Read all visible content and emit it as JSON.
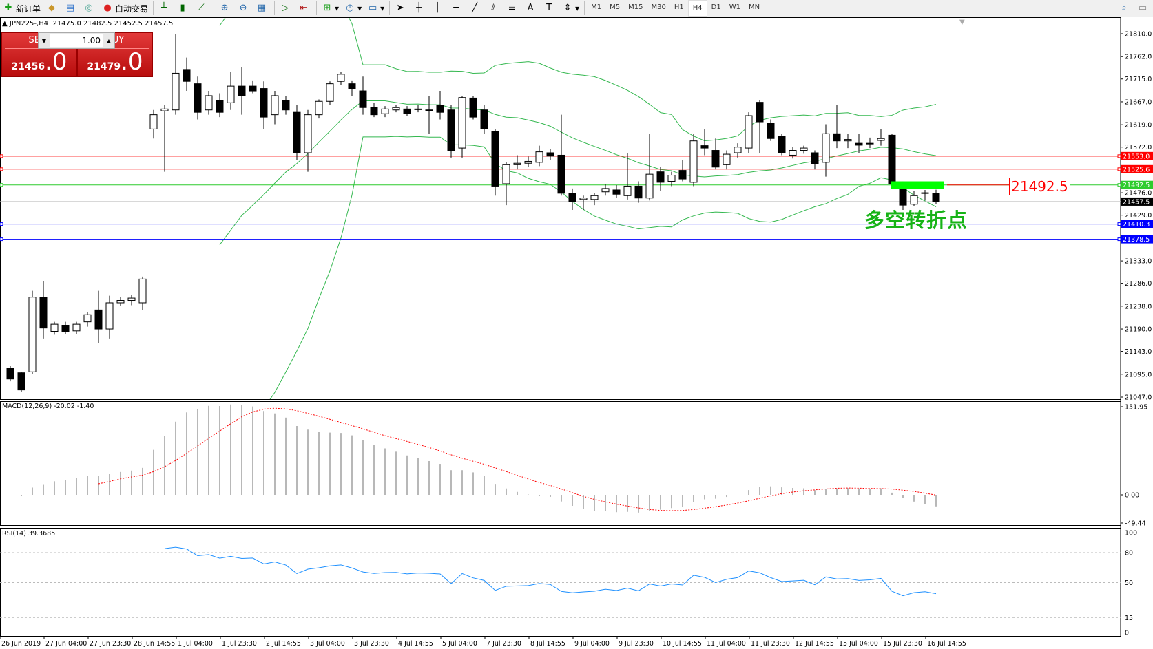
{
  "toolbar": {
    "new_order": "新订单",
    "auto_trading": "自动交易",
    "icons": [
      "new-order-icon",
      "market-watch-icon",
      "navigator-icon",
      "signals-icon",
      "autotrading-icon",
      "bar-chart-icon",
      "candlestick-icon",
      "line-chart-icon",
      "zoom-in-icon",
      "zoom-out-icon",
      "tile-windows-icon",
      "autoscroll-icon",
      "chart-shift-icon",
      "indicators-icon",
      "periods-icon",
      "templates-icon",
      "cursor-icon",
      "crosshair-icon",
      "vertical-line-icon",
      "horizontal-line-icon",
      "trendline-icon",
      "equidistant-channel-icon",
      "fibonacci-icon",
      "text-icon",
      "text-label-icon",
      "arrows-icon",
      "search-icon",
      "chat-icon"
    ],
    "timeframes": [
      "M1",
      "M5",
      "M15",
      "M30",
      "H1",
      "H4",
      "D1",
      "W1",
      "MN"
    ],
    "active_timeframe": "H4"
  },
  "header": {
    "symbol": "JPN225-,H4",
    "ohlc": "21475.0 21482.5 21452.5 21457.5"
  },
  "one_click": {
    "sell_label": "SELL",
    "buy_label": "BUY",
    "lot": "1.00",
    "sell_price": "21456",
    "sell_frac": ".0",
    "buy_price": "21479",
    "buy_frac": ".0"
  },
  "price_axis": [
    "21810.0",
    "21762.0",
    "21715.0",
    "21667.0",
    "21619.0",
    "21572.0",
    "21476.0",
    "21429.0",
    "21333.0",
    "21286.0",
    "21238.0",
    "21190.0",
    "21143.0",
    "21095.0",
    "21047.0"
  ],
  "levels": [
    {
      "price": 21553.0,
      "label": "21553.0",
      "color": "#ff0000"
    },
    {
      "price": 21525.6,
      "label": "21525.6",
      "color": "#ff0000"
    },
    {
      "price": 21492.5,
      "label": "21492.5",
      "color": "#2ecc2e"
    },
    {
      "price": 21457.5,
      "label": "21457.5",
      "color": "#000000",
      "line": "#c0c0c0"
    },
    {
      "price": 21410.3,
      "label": "21410.3",
      "color": "#0000ff"
    },
    {
      "price": 21378.5,
      "label": "21378.5",
      "color": "#0000ff"
    }
  ],
  "annotation": {
    "price_label": "21492.5",
    "text": "多空转折点",
    "marker_color": "#00ff00"
  },
  "macd": {
    "label": "MACD(12,26,9) -20.02 -1.40",
    "axis": [
      "151.95",
      "0.00",
      "-49.44"
    ],
    "max": 151.95,
    "min": -49.44
  },
  "rsi": {
    "label": "RSI(14) 39.3685",
    "axis": [
      "100",
      "80",
      "50",
      "15",
      "0"
    ],
    "levels": [
      80,
      50,
      15
    ]
  },
  "time_axis": [
    "26 Jun 2019",
    "27 Jun 04:00",
    "27 Jun 23:30",
    "28 Jun 14:55",
    "1 Jul 04:00",
    "1 Jul 23:30",
    "2 Jul 14:55",
    "3 Jul 04:00",
    "3 Jul 23:30",
    "4 Jul 14:55",
    "5 Jul 04:00",
    "7 Jul 23:30",
    "8 Jul 14:55",
    "9 Jul 04:00",
    "9 Jul 23:30",
    "10 Jul 14:55",
    "11 Jul 04:00",
    "11 Jul 23:30",
    "12 Jul 14:55",
    "15 Jul 04:00",
    "15 Jul 23:30",
    "16 Jul 14:55"
  ],
  "colors": {
    "bands": "#35b850",
    "macd_hist": "#b8b8b8",
    "macd_signal": "#ff0000",
    "rsi": "#1e90ff"
  },
  "chart_data": {
    "type": "candlestick",
    "price_range": [
      21047.0,
      21810.0
    ],
    "candles": [
      [
        21108,
        21112,
        21080,
        21085
      ],
      [
        21098,
        21100,
        21058,
        21062
      ],
      [
        21100,
        21270,
        21095,
        21257
      ],
      [
        21257,
        21290,
        21170,
        21192
      ],
      [
        21185,
        21205,
        21178,
        21200
      ],
      [
        21198,
        21205,
        21180,
        21185
      ],
      [
        21186,
        21205,
        21180,
        21200
      ],
      [
        21205,
        21225,
        21195,
        21220
      ],
      [
        21230,
        21270,
        21160,
        21190
      ],
      [
        21190,
        21260,
        21170,
        21245
      ],
      [
        21245,
        21258,
        21238,
        21250
      ],
      [
        21250,
        21262,
        21240,
        21255
      ],
      [
        21245,
        21300,
        21230,
        21295
      ],
      [
        21610,
        21650,
        21590,
        21640
      ],
      [
        21648,
        21660,
        21520,
        21652
      ],
      [
        21650,
        21810,
        21640,
        21727
      ],
      [
        21735,
        21760,
        21690,
        21710
      ],
      [
        21705,
        21720,
        21630,
        21645
      ],
      [
        21650,
        21690,
        21640,
        21680
      ],
      [
        21670,
        21685,
        21635,
        21645
      ],
      [
        21665,
        21730,
        21650,
        21700
      ],
      [
        21700,
        21740,
        21640,
        21680
      ],
      [
        21700,
        21712,
        21685,
        21690
      ],
      [
        21695,
        21710,
        21610,
        21635
      ],
      [
        21640,
        21690,
        21620,
        21680
      ],
      [
        21670,
        21680,
        21640,
        21650
      ],
      [
        21645,
        21660,
        21545,
        21560
      ],
      [
        21560,
        21650,
        21520,
        21640
      ],
      [
        21640,
        21672,
        21632,
        21668
      ],
      [
        21668,
        21710,
        21660,
        21705
      ],
      [
        21710,
        21730,
        21702,
        21725
      ],
      [
        21705,
        21712,
        21680,
        21695
      ],
      [
        21690,
        21720,
        21640,
        21655
      ],
      [
        21655,
        21665,
        21635,
        21640
      ],
      [
        21642,
        21658,
        21635,
        21652
      ],
      [
        21650,
        21660,
        21645,
        21655
      ],
      [
        21652,
        21658,
        21638,
        21642
      ],
      [
        21652,
        21660,
        21645,
        21652
      ],
      [
        21650,
        21680,
        21600,
        21650
      ],
      [
        21660,
        21690,
        21630,
        21645
      ],
      [
        21650,
        21660,
        21550,
        21565
      ],
      [
        21570,
        21680,
        21550,
        21676
      ],
      [
        21675,
        21680,
        21630,
        21635
      ],
      [
        21650,
        21660,
        21600,
        21610
      ],
      [
        21605,
        21610,
        21470,
        21490
      ],
      [
        21495,
        21540,
        21450,
        21535
      ],
      [
        21535,
        21555,
        21525,
        21538
      ],
      [
        21538,
        21552,
        21530,
        21542
      ],
      [
        21540,
        21575,
        21532,
        21562
      ],
      [
        21560,
        21568,
        21545,
        21553
      ],
      [
        21555,
        21640,
        21470,
        21475
      ],
      [
        21475,
        21485,
        21440,
        21458
      ],
      [
        21462,
        21470,
        21440,
        21465
      ],
      [
        21462,
        21475,
        21450,
        21470
      ],
      [
        21478,
        21495,
        21470,
        21485
      ],
      [
        21482,
        21492,
        21465,
        21473
      ],
      [
        21470,
        21560,
        21462,
        21490
      ],
      [
        21490,
        21500,
        21455,
        21465
      ],
      [
        21465,
        21600,
        21460,
        21515
      ],
      [
        21520,
        21530,
        21480,
        21498
      ],
      [
        21500,
        21520,
        21490,
        21513
      ],
      [
        21523,
        21545,
        21500,
        21505
      ],
      [
        21498,
        21600,
        21490,
        21585
      ],
      [
        21575,
        21610,
        21555,
        21570
      ],
      [
        21565,
        21590,
        21525,
        21530
      ],
      [
        21535,
        21565,
        21525,
        21557
      ],
      [
        21560,
        21580,
        21550,
        21572
      ],
      [
        21570,
        21645,
        21560,
        21638
      ],
      [
        21666,
        21670,
        21560,
        21625
      ],
      [
        21622,
        21630,
        21585,
        21590
      ],
      [
        21595,
        21600,
        21555,
        21560
      ],
      [
        21555,
        21572,
        21548,
        21565
      ],
      [
        21565,
        21575,
        21558,
        21570
      ],
      [
        21560,
        21565,
        21525,
        21537
      ],
      [
        21540,
        21620,
        21510,
        21600
      ],
      [
        21600,
        21660,
        21570,
        21585
      ],
      [
        21585,
        21600,
        21570,
        21588
      ],
      [
        21580,
        21600,
        21560,
        21576
      ],
      [
        21580,
        21592,
        21570,
        21580
      ],
      [
        21586,
        21610,
        21575,
        21590
      ],
      [
        21597,
        21600,
        21490,
        21495
      ],
      [
        21495,
        21500,
        21440,
        21450
      ],
      [
        21452,
        21480,
        21448,
        21470
      ],
      [
        21475,
        21482,
        21460,
        21476
      ],
      [
        21475,
        21482.5,
        21452.5,
        21457.5
      ]
    ]
  }
}
